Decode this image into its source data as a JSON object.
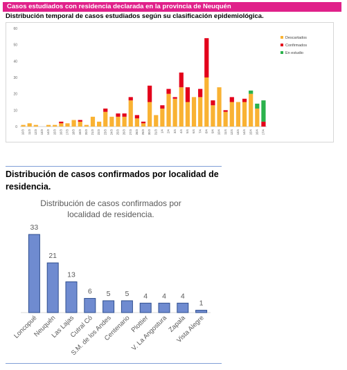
{
  "header": {
    "banner": "Casos estudiados con residencia declarada en la provincia de Neuquén",
    "subtitle": "Distribución temporal de casos estudiados según su clasificación epidemiológica."
  },
  "section2": {
    "title": "Distribución de casos confirmados por localidad de residencia."
  },
  "colors": {
    "banner": "#e0218a",
    "descartados": "#f9b233",
    "confirmados": "#e3001b",
    "en_estudio": "#2bb24c",
    "bar2": "#6f8bd0"
  },
  "chart_data": [
    {
      "type": "bar",
      "stacked": true,
      "title": "",
      "xlabel": "",
      "ylabel": "",
      "ylim": [
        0,
        60
      ],
      "yticks": [
        0,
        10,
        20,
        30,
        40,
        50,
        60
      ],
      "grid": false,
      "legend": "top-right",
      "categories": [
        "10/3",
        "11/3",
        "12/3",
        "13/3",
        "14/3",
        "15/3",
        "16/3",
        "17/3",
        "18/3",
        "19/3",
        "20/3",
        "21/3",
        "22/3",
        "23/3",
        "24/3",
        "25/3",
        "26/3",
        "27/3",
        "28/3",
        "29/3",
        "30/3",
        "31/3",
        "1/4",
        "2/4",
        "3/4",
        "4/4",
        "5/4",
        "6/4",
        "7/4",
        "8/4",
        "9/4",
        "10/4",
        "11/4",
        "12/4",
        "13/4",
        "14/4",
        "15/4",
        "16/4",
        "17/4"
      ],
      "series": [
        {
          "name": "Descartados",
          "values": [
            1,
            2,
            1,
            0,
            1,
            1,
            2,
            2,
            4,
            3,
            1,
            6,
            3,
            9,
            6,
            6,
            6,
            16,
            5,
            2,
            15,
            7,
            11,
            20,
            17,
            24,
            15,
            18,
            18,
            30,
            13,
            24,
            9,
            15,
            15,
            15,
            20,
            11,
            0
          ]
        },
        {
          "name": "Confirmados",
          "values": [
            0,
            0,
            0,
            0,
            0,
            0,
            1,
            0,
            0,
            1,
            0,
            0,
            0,
            2,
            0,
            2,
            2,
            2,
            2,
            1,
            10,
            0,
            2,
            3,
            1,
            9,
            9,
            0,
            5,
            24,
            3,
            0,
            1,
            3,
            0,
            2,
            0,
            0,
            3
          ]
        },
        {
          "name": "En estudio",
          "values": [
            0,
            0,
            0,
            0,
            0,
            0,
            0,
            0,
            0,
            0,
            0,
            0,
            0,
            0,
            0,
            0,
            0,
            0,
            0,
            0,
            0,
            0,
            0,
            0,
            0,
            0,
            0,
            0,
            0,
            0,
            0,
            0,
            0,
            0,
            0,
            0,
            2,
            3,
            13
          ]
        }
      ]
    },
    {
      "type": "bar",
      "title": "Distribución de casos confirmados por localidad de residencia.",
      "xlabel": "",
      "ylabel": "",
      "categories": [
        "Loncopué",
        "Neuquén",
        "Las Lajas",
        "Cutral Có",
        "S.M. de los Andes",
        "Centenario",
        "Plottier",
        "V. La Angostura",
        "Zapala",
        "Vista Alegre"
      ],
      "values": [
        33,
        21,
        13,
        6,
        5,
        5,
        4,
        4,
        4,
        1
      ],
      "ylim": [
        0,
        35
      ],
      "grid": false,
      "data_labels": true
    }
  ]
}
